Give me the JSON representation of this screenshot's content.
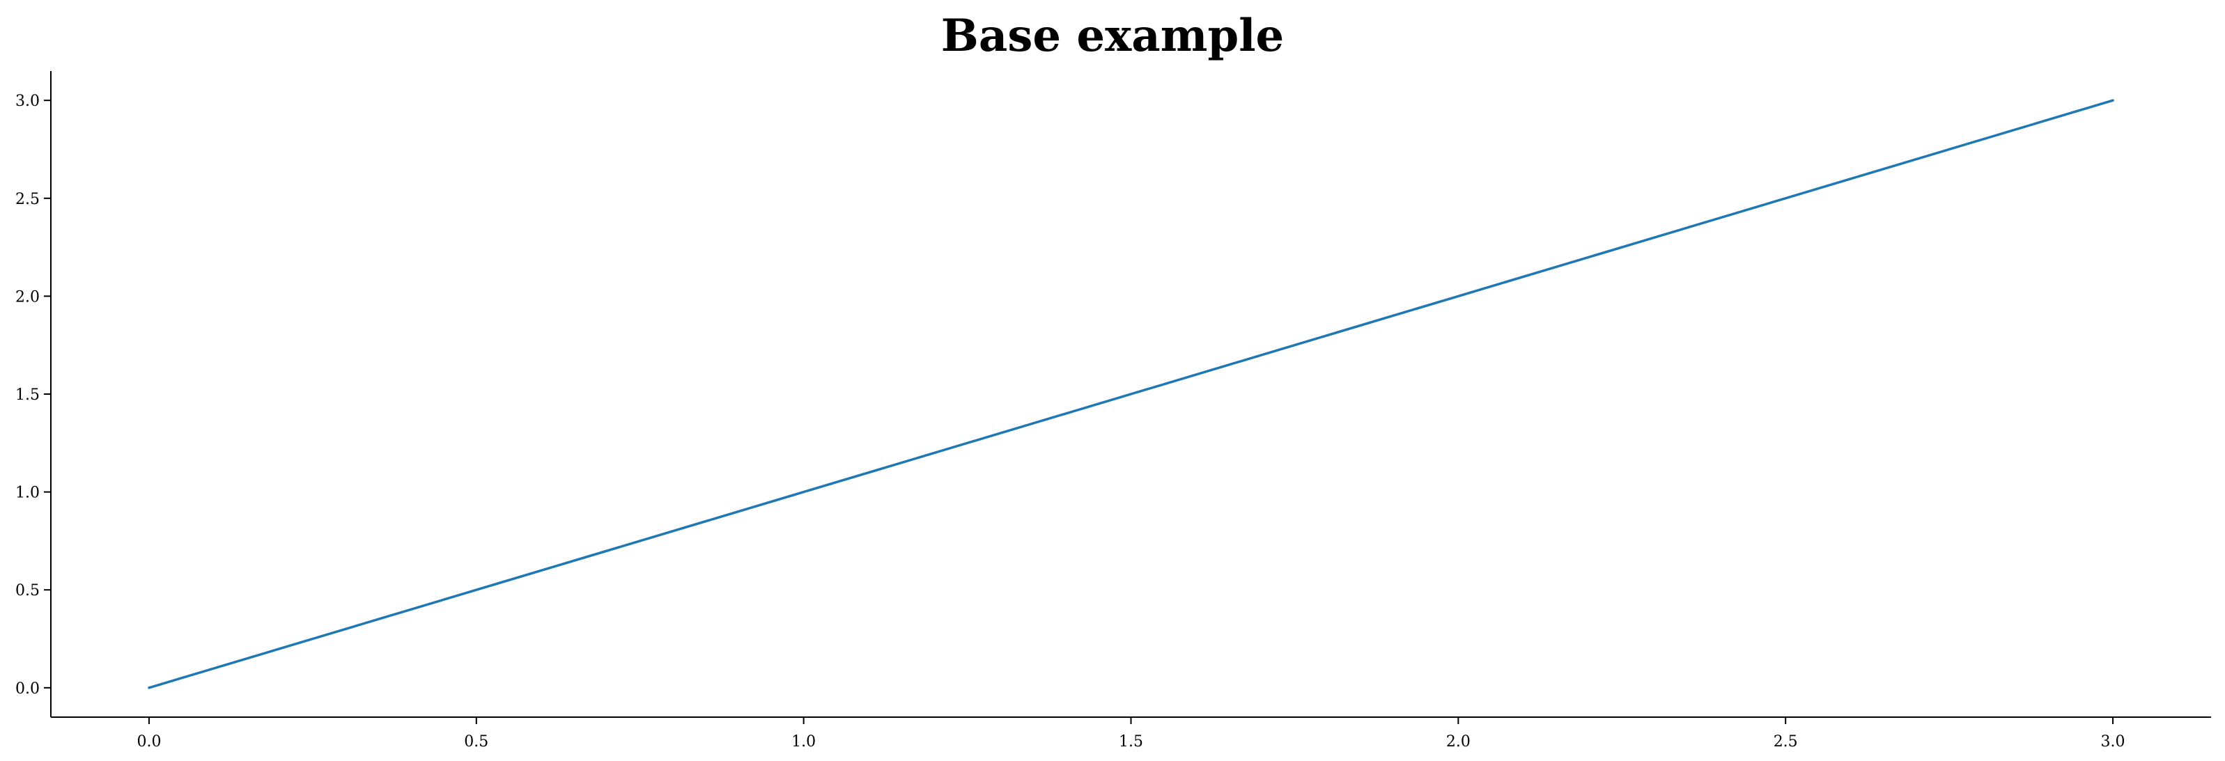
{
  "chart_data": {
    "type": "line",
    "title": "Base example",
    "xlabel": "",
    "ylabel": "",
    "xlim": [
      -0.15,
      3.15
    ],
    "ylim": [
      -0.15,
      3.15
    ],
    "x_ticks": [
      0.0,
      0.5,
      1.0,
      1.5,
      2.0,
      2.5,
      3.0
    ],
    "x_tick_labels": [
      "0.0",
      "0.5",
      "1.0",
      "1.5",
      "2.0",
      "2.5",
      "3.0"
    ],
    "y_ticks": [
      0.0,
      0.5,
      1.0,
      1.5,
      2.0,
      2.5,
      3.0
    ],
    "y_tick_labels": [
      "0.0",
      "0.5",
      "1.0",
      "1.5",
      "2.0",
      "2.5",
      "3.0"
    ],
    "grid": false,
    "legend": "none",
    "spines": [
      "left",
      "bottom"
    ],
    "series": [
      {
        "x": [
          0,
          1,
          2,
          3
        ],
        "y": [
          0,
          1,
          2,
          3
        ],
        "color": "#1f77b4"
      }
    ]
  }
}
